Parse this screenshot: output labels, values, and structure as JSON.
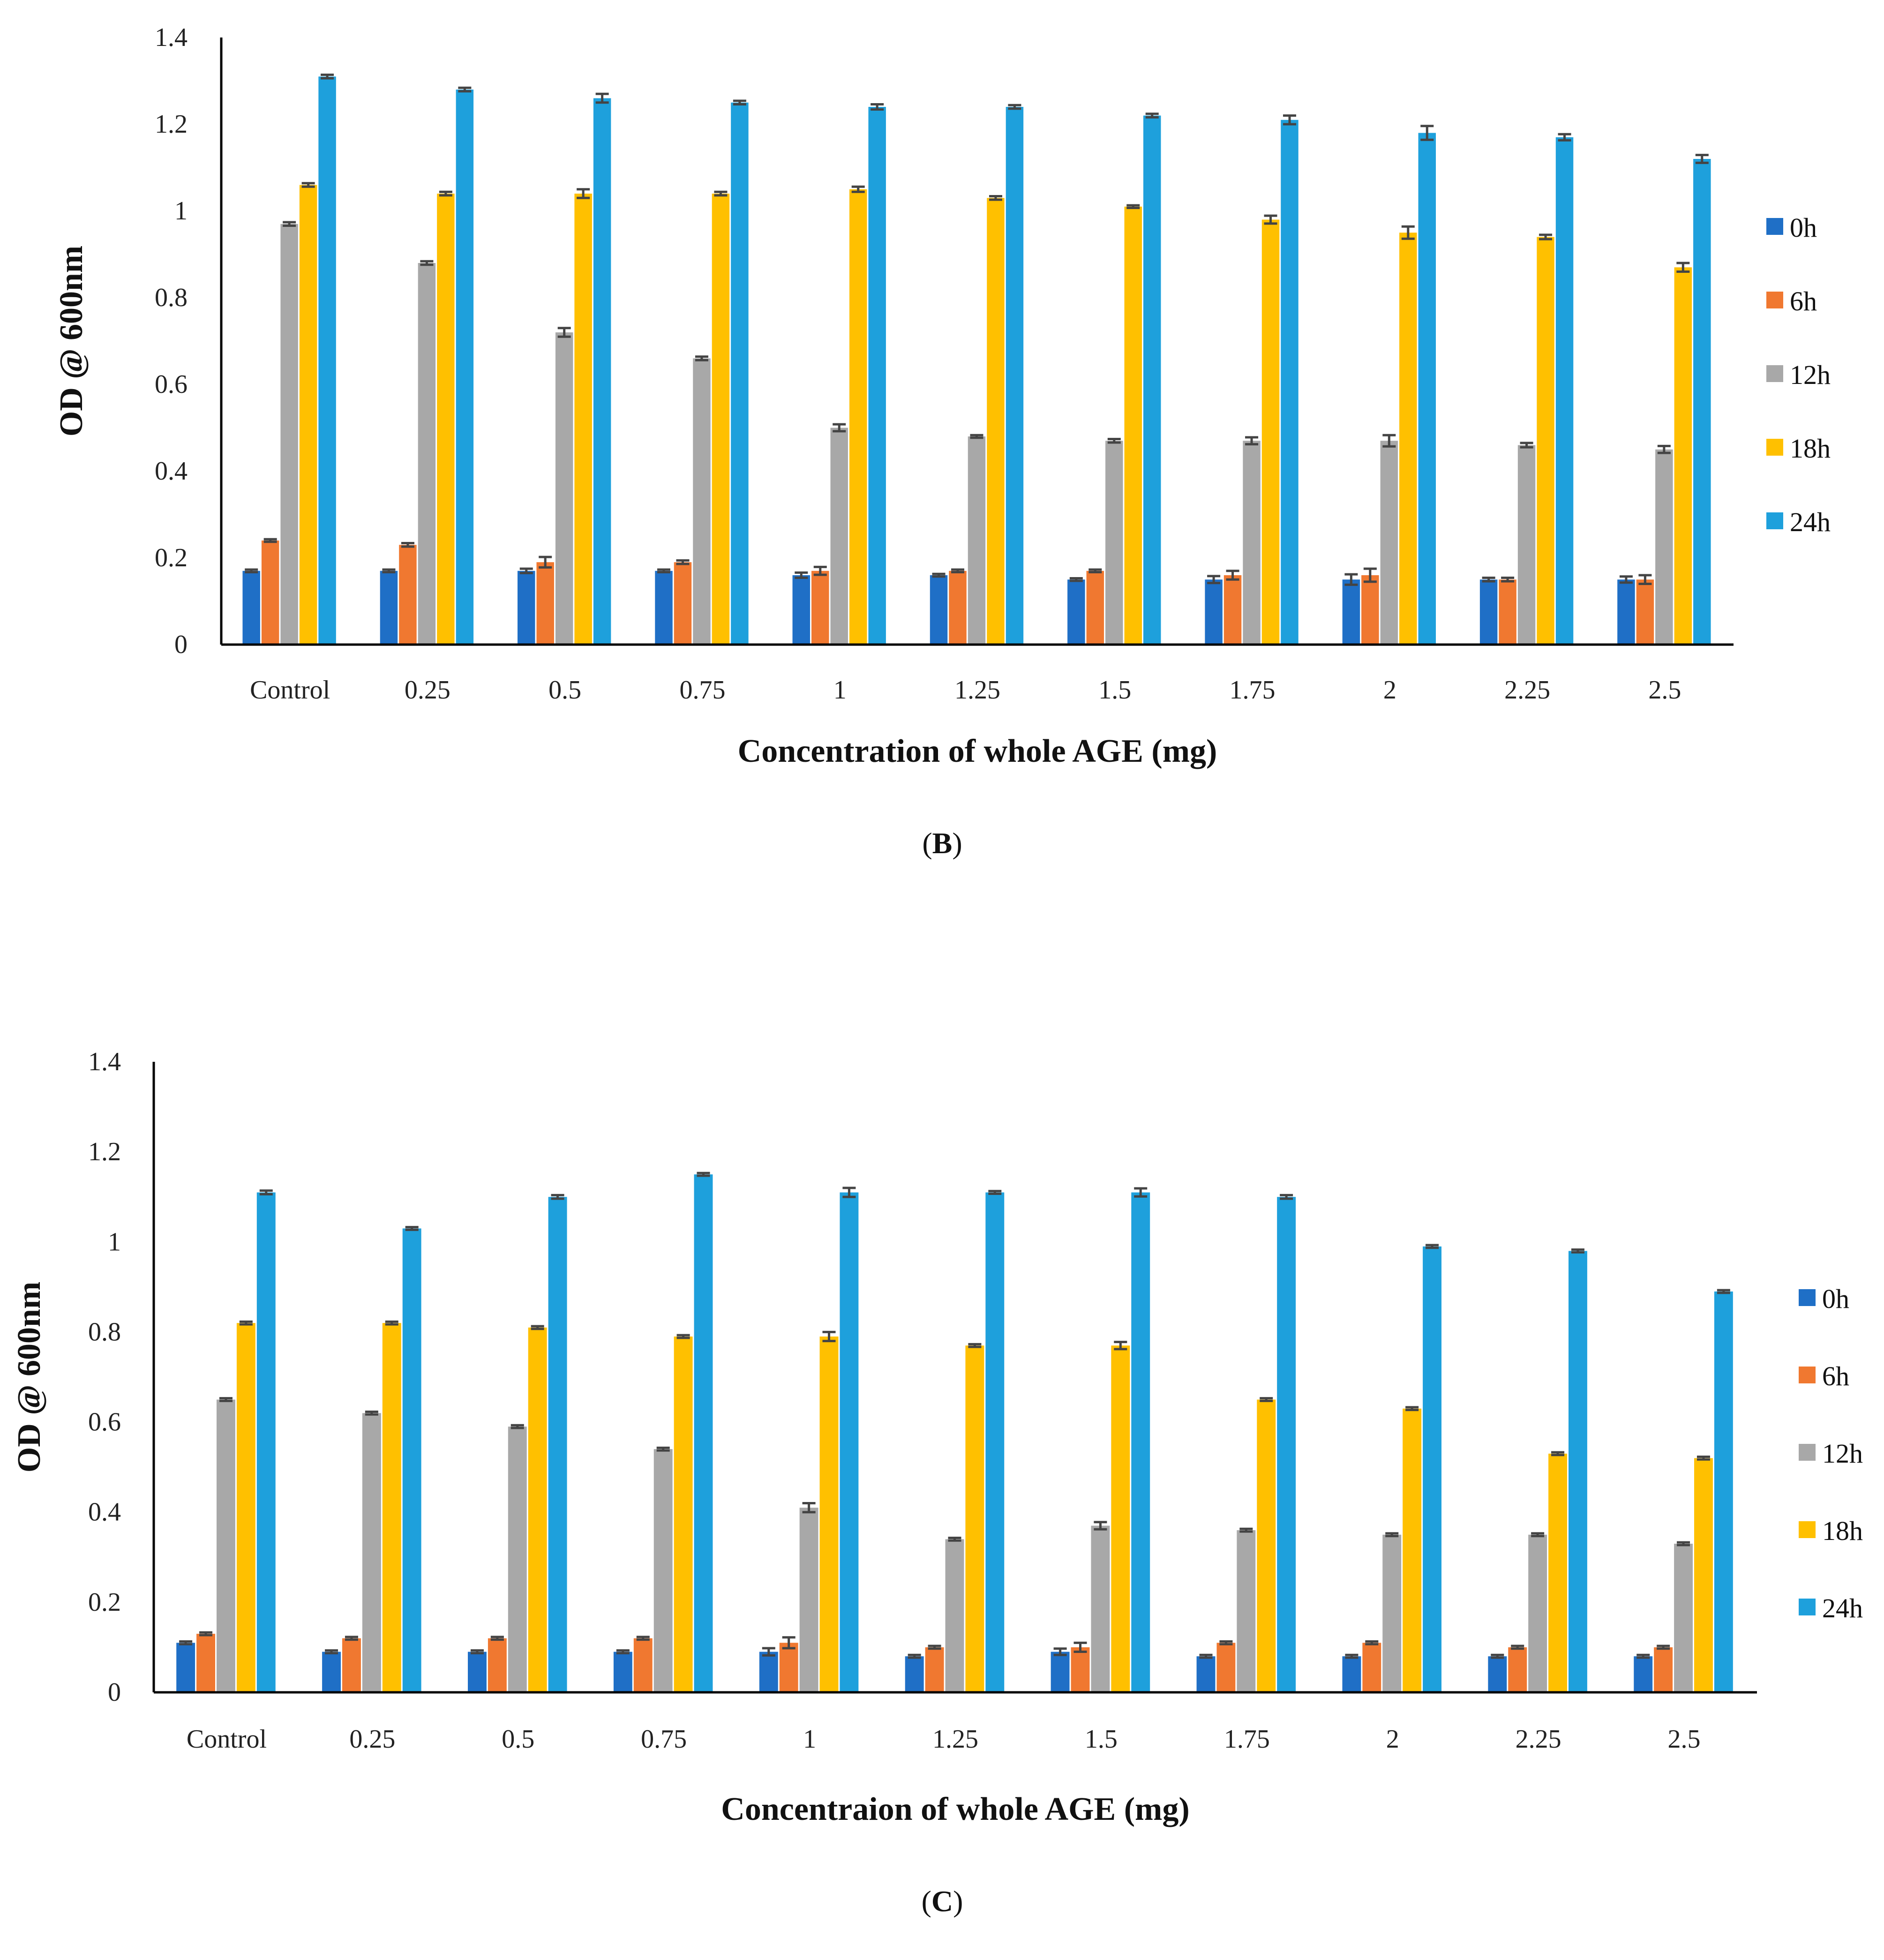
{
  "colors": {
    "0h": "#1f6fc6",
    "6h": "#f07830",
    "12h": "#a8a8a8",
    "18h": "#ffc000",
    "24h": "#1ea0dc",
    "axis": "#000000",
    "errorbar": "#444444"
  },
  "chart_data": [
    {
      "type": "bar",
      "panel": "B",
      "panel_label_open": "(",
      "panel_label_letter": "B",
      "panel_label_close": ")",
      "title": "",
      "xlabel": "Concentration of whole AGE (mg)",
      "ylabel": "OD @ 600nm",
      "ylim": [
        0,
        1.4
      ],
      "yticks": [
        0,
        0.2,
        0.4,
        0.6,
        0.8,
        1,
        1.2,
        1.4
      ],
      "ytick_labels": [
        "0",
        "0.2",
        "0.4",
        "0.6",
        "0.8",
        "1",
        "1.2",
        "1.4"
      ],
      "legend_position": "right",
      "categories": [
        "Control",
        "0.25",
        "0.5",
        "0.75",
        "1",
        "1.25",
        "1.5",
        "1.75",
        "2",
        "2.25",
        "2.5"
      ],
      "series": [
        {
          "name": "0h",
          "values": [
            0.17,
            0.17,
            0.17,
            0.17,
            0.16,
            0.16,
            0.15,
            0.15,
            0.15,
            0.15,
            0.15
          ],
          "errors": [
            0.003,
            0.003,
            0.005,
            0.003,
            0.006,
            0.003,
            0.003,
            0.008,
            0.012,
            0.004,
            0.007
          ]
        },
        {
          "name": "6h",
          "values": [
            0.24,
            0.23,
            0.19,
            0.19,
            0.17,
            0.17,
            0.17,
            0.16,
            0.16,
            0.15,
            0.15
          ],
          "errors": [
            0.003,
            0.004,
            0.012,
            0.004,
            0.009,
            0.003,
            0.003,
            0.01,
            0.015,
            0.004,
            0.01
          ]
        },
        {
          "name": "12h",
          "values": [
            0.97,
            0.88,
            0.72,
            0.66,
            0.5,
            0.48,
            0.47,
            0.47,
            0.47,
            0.46,
            0.45
          ],
          "errors": [
            0.004,
            0.004,
            0.01,
            0.004,
            0.008,
            0.003,
            0.004,
            0.008,
            0.013,
            0.005,
            0.008
          ]
        },
        {
          "name": "18h",
          "values": [
            1.06,
            1.04,
            1.04,
            1.04,
            1.05,
            1.03,
            1.01,
            0.98,
            0.95,
            0.94,
            0.87
          ],
          "errors": [
            0.004,
            0.004,
            0.01,
            0.004,
            0.006,
            0.004,
            0.003,
            0.009,
            0.014,
            0.005,
            0.01
          ]
        },
        {
          "name": "24h",
          "values": [
            1.31,
            1.28,
            1.26,
            1.25,
            1.24,
            1.24,
            1.22,
            1.21,
            1.18,
            1.17,
            1.12
          ],
          "errors": [
            0.004,
            0.004,
            0.01,
            0.004,
            0.006,
            0.004,
            0.004,
            0.01,
            0.016,
            0.007,
            0.009
          ]
        }
      ]
    },
    {
      "type": "bar",
      "panel": "C",
      "panel_label_open": "(",
      "panel_label_letter": "C",
      "panel_label_close": ")",
      "title": "",
      "xlabel": "Concentraion of whole AGE (mg)",
      "ylabel": "OD @ 600nm",
      "ylim": [
        0,
        1.4
      ],
      "yticks": [
        0,
        0.2,
        0.4,
        0.6,
        0.8,
        1,
        1.2,
        1.4
      ],
      "ytick_labels": [
        "0",
        "0.2",
        "0.4",
        "0.6",
        "0.8",
        "1",
        "1.2",
        "1.4"
      ],
      "legend_position": "right",
      "categories": [
        "Control",
        "0.25",
        "0.5",
        "0.75",
        "1",
        "1.25",
        "1.5",
        "1.75",
        "2",
        "2.25",
        "2.5"
      ],
      "series": [
        {
          "name": "0h",
          "values": [
            0.11,
            0.09,
            0.09,
            0.09,
            0.09,
            0.08,
            0.09,
            0.08,
            0.08,
            0.08,
            0.08
          ],
          "errors": [
            0.003,
            0.003,
            0.003,
            0.003,
            0.008,
            0.003,
            0.007,
            0.003,
            0.003,
            0.003,
            0.003
          ]
        },
        {
          "name": "6h",
          "values": [
            0.13,
            0.12,
            0.12,
            0.12,
            0.11,
            0.1,
            0.1,
            0.11,
            0.11,
            0.1,
            0.1
          ],
          "errors": [
            0.003,
            0.003,
            0.003,
            0.003,
            0.012,
            0.003,
            0.01,
            0.003,
            0.003,
            0.003,
            0.003
          ]
        },
        {
          "name": "12h",
          "values": [
            0.65,
            0.62,
            0.59,
            0.54,
            0.41,
            0.34,
            0.37,
            0.36,
            0.35,
            0.35,
            0.33
          ],
          "errors": [
            0.003,
            0.003,
            0.003,
            0.003,
            0.01,
            0.003,
            0.008,
            0.003,
            0.003,
            0.003,
            0.003
          ]
        },
        {
          "name": "18h",
          "values": [
            0.82,
            0.82,
            0.81,
            0.79,
            0.79,
            0.77,
            0.77,
            0.65,
            0.63,
            0.53,
            0.52
          ],
          "errors": [
            0.003,
            0.003,
            0.003,
            0.003,
            0.01,
            0.003,
            0.008,
            0.003,
            0.003,
            0.003,
            0.003
          ]
        },
        {
          "name": "24h",
          "values": [
            1.11,
            1.03,
            1.1,
            1.15,
            1.11,
            1.11,
            1.11,
            1.1,
            0.99,
            0.98,
            0.89
          ],
          "errors": [
            0.004,
            0.003,
            0.004,
            0.003,
            0.01,
            0.003,
            0.009,
            0.004,
            0.003,
            0.003,
            0.003
          ]
        }
      ]
    }
  ]
}
